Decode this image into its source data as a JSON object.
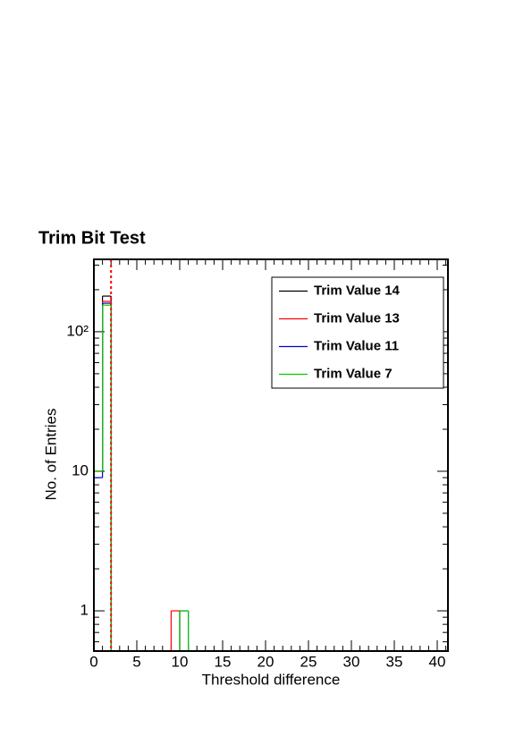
{
  "chart_data": {
    "type": "histogram",
    "title": "Trim Bit Test",
    "x_label": "Threshold difference",
    "y_label": "No. of Entries",
    "log_y": true,
    "bins": [
      0,
      1,
      2,
      3,
      4,
      5,
      6,
      7,
      8,
      9,
      10,
      11,
      12,
      13,
      14,
      15,
      16,
      17,
      18,
      19,
      20,
      21,
      22,
      23,
      24,
      25,
      26,
      27,
      28,
      29,
      30,
      31,
      32,
      33,
      34,
      35,
      36,
      37,
      38,
      39,
      40,
      41
    ],
    "series": [
      {
        "name": "Trim Value 14",
        "color": "#000000",
        "values": [
          10,
          180,
          0,
          0,
          0,
          0,
          0,
          0,
          0,
          0,
          0,
          0,
          0,
          0,
          0,
          0,
          0,
          0,
          0,
          0,
          0,
          0,
          0,
          0,
          0,
          0,
          0,
          0,
          0,
          0,
          0,
          0,
          0,
          0,
          0,
          0,
          0,
          0,
          0,
          0,
          0
        ]
      },
      {
        "name": "Trim Value 13",
        "color": "#ff0000",
        "values": [
          10,
          165,
          0,
          0,
          0,
          0,
          0,
          0,
          0,
          1,
          0,
          0,
          0,
          0,
          0,
          0,
          0,
          0,
          0,
          0,
          0,
          0,
          0,
          0,
          0,
          0,
          0,
          0,
          0,
          0,
          0,
          0,
          0,
          0,
          0,
          0,
          0,
          0,
          0,
          0,
          0
        ]
      },
      {
        "name": "Trim Value 11",
        "color": "#0000cc",
        "values": [
          9,
          160,
          0,
          0,
          0,
          0,
          0,
          0,
          0,
          0,
          1,
          0,
          0,
          0,
          0,
          0,
          0,
          0,
          0,
          0,
          0,
          0,
          0,
          0,
          0,
          0,
          0,
          0,
          0,
          0,
          0,
          0,
          0,
          0,
          0,
          0,
          0,
          0,
          0,
          0,
          0
        ]
      },
      {
        "name": "Trim Value 7",
        "color": "#00cc00",
        "values": [
          10,
          155,
          0,
          0,
          0,
          0,
          0,
          0,
          0,
          0,
          1,
          0,
          0,
          0,
          0,
          0,
          0,
          0,
          0,
          0,
          0,
          0,
          0,
          0,
          0,
          0,
          0,
          0,
          0,
          0,
          0,
          0,
          0,
          0,
          0,
          0,
          0,
          0,
          0,
          0,
          0
        ]
      }
    ],
    "vline": {
      "x": 2,
      "color": "#ff0000"
    },
    "xlim": [
      0,
      41.25
    ],
    "xticks": [
      0,
      5,
      10,
      15,
      20,
      25,
      30,
      35,
      40
    ],
    "ylim": [
      0.515,
      330
    ],
    "yticks": [
      1,
      10,
      {
        "value": 100,
        "label": "10²"
      }
    ],
    "legend": "top-right"
  }
}
